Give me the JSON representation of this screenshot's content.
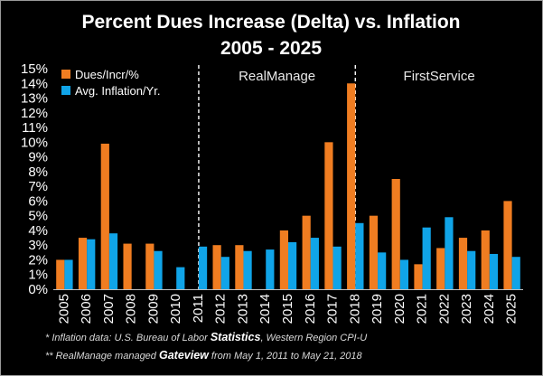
{
  "chart_data": {
    "type": "bar",
    "title_lines": [
      "Percent Dues Increase (Delta) vs. Inflation",
      "2005 - 2025"
    ],
    "categories": [
      "2005",
      "2006",
      "2007",
      "2008",
      "2009",
      "2010",
      "2011",
      "2012",
      "2013",
      "2014",
      "2015",
      "2016",
      "2017",
      "2018",
      "2019",
      "2020",
      "2021",
      "2022",
      "2023",
      "2024",
      "2025"
    ],
    "series": [
      {
        "name": "Dues/Incr/%",
        "color": "#f07d21",
        "values": [
          2.0,
          3.5,
          9.9,
          3.1,
          3.1,
          null,
          null,
          3.0,
          3.0,
          null,
          4.0,
          5.0,
          10.0,
          14.0,
          5.0,
          7.5,
          1.7,
          2.8,
          3.5,
          4.0,
          6.0
        ]
      },
      {
        "name": "Avg. Inflation/Yr.",
        "color": "#10a4e8",
        "values": [
          2.0,
          3.4,
          3.8,
          null,
          2.6,
          1.5,
          2.9,
          2.2,
          2.6,
          2.7,
          3.2,
          3.5,
          2.9,
          4.5,
          2.5,
          2.0,
          4.2,
          4.9,
          2.6,
          2.4,
          2.2
        ]
      }
    ],
    "y_ticks": [
      "0%",
      "1%",
      "2%",
      "3%",
      "4%",
      "5%",
      "6%",
      "7%",
      "8%",
      "9%",
      "10%",
      "11%",
      "12%",
      "13%",
      "14%",
      "15%"
    ],
    "ylim": [
      0,
      15
    ],
    "legend_position": "top-left",
    "regions": [
      {
        "label": "RealManage",
        "start": "2011",
        "end": "2018"
      },
      {
        "label": "FirstService",
        "start": "2018",
        "end": "2025"
      }
    ],
    "footnotes": [
      {
        "parts": [
          {
            "text": "* Inflation data: U.S. Bureau of Labor ",
            "strong": false
          },
          {
            "text": "Statistics",
            "strong": true
          },
          {
            "text": ", Western Region CPI-U",
            "strong": false
          }
        ]
      },
      {
        "parts": [
          {
            "text": "** RealManage managed ",
            "strong": false
          },
          {
            "text": "Gateview",
            "strong": true
          },
          {
            "text": " from May 1, 2011 to May 21, 2018",
            "strong": false
          }
        ]
      }
    ]
  }
}
